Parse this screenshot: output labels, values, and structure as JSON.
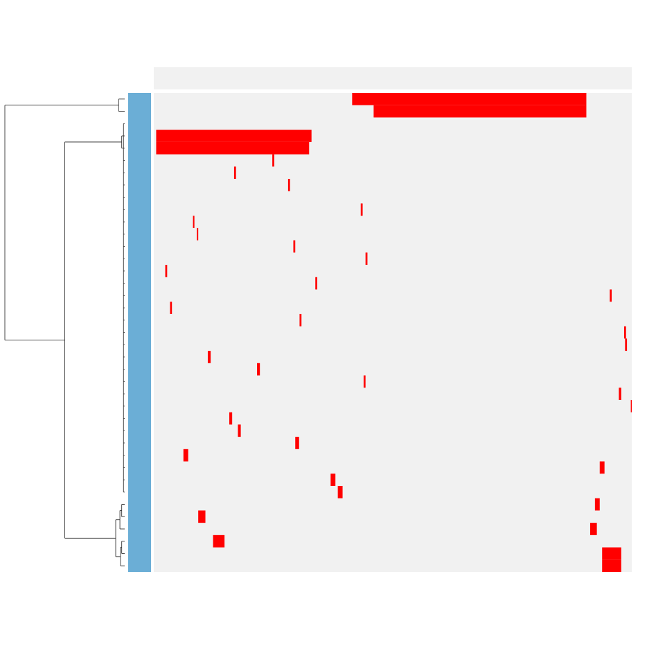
{
  "chart_data": {
    "type": "heatmap",
    "title": "",
    "xlabel": "",
    "ylabel": "",
    "grid": false,
    "legend": "none",
    "n_rows": 39,
    "x_range": [
      0,
      100
    ],
    "colors": {
      "background": "#f1f1f1",
      "mark": "#ff0000",
      "row_annotation": "#6baed6",
      "dendrogram": "#333333"
    },
    "marked_segments": [
      {
        "row": 0,
        "x_start": 41.5,
        "x_end": 90.5
      },
      {
        "row": 1,
        "x_start": 46.0,
        "x_end": 90.5
      },
      {
        "row": 3,
        "x_start": 0.5,
        "x_end": 33.0
      },
      {
        "row": 4,
        "x_start": 0.5,
        "x_end": 32.5
      },
      {
        "row": 5,
        "x_start": 24.8,
        "x_end": 25.2
      },
      {
        "row": 6,
        "x_start": 16.8,
        "x_end": 17.2
      },
      {
        "row": 7,
        "x_start": 28.1,
        "x_end": 28.5
      },
      {
        "row": 9,
        "x_start": 43.3,
        "x_end": 43.7
      },
      {
        "row": 10,
        "x_start": 8.2,
        "x_end": 8.5
      },
      {
        "row": 11,
        "x_start": 9.0,
        "x_end": 9.3
      },
      {
        "row": 12,
        "x_start": 29.2,
        "x_end": 29.6
      },
      {
        "row": 13,
        "x_start": 44.3,
        "x_end": 44.7
      },
      {
        "row": 14,
        "x_start": 2.4,
        "x_end": 2.8
      },
      {
        "row": 15,
        "x_start": 33.8,
        "x_end": 34.2
      },
      {
        "row": 16,
        "x_start": 95.4,
        "x_end": 95.8
      },
      {
        "row": 17,
        "x_start": 3.4,
        "x_end": 3.8
      },
      {
        "row": 18,
        "x_start": 30.5,
        "x_end": 30.9
      },
      {
        "row": 19,
        "x_start": 98.4,
        "x_end": 98.8
      },
      {
        "row": 20,
        "x_start": 98.6,
        "x_end": 99.0
      },
      {
        "row": 21,
        "x_start": 11.3,
        "x_end": 11.9
      },
      {
        "row": 22,
        "x_start": 21.6,
        "x_end": 22.2
      },
      {
        "row": 23,
        "x_start": 43.9,
        "x_end": 44.3
      },
      {
        "row": 24,
        "x_start": 97.3,
        "x_end": 97.8
      },
      {
        "row": 25,
        "x_start": 99.8,
        "x_end": 100.0
      },
      {
        "row": 26,
        "x_start": 15.8,
        "x_end": 16.4
      },
      {
        "row": 27,
        "x_start": 17.6,
        "x_end": 18.2
      },
      {
        "row": 28,
        "x_start": 29.6,
        "x_end": 30.4
      },
      {
        "row": 29,
        "x_start": 6.2,
        "x_end": 7.2
      },
      {
        "row": 30,
        "x_start": 93.3,
        "x_end": 94.3
      },
      {
        "row": 31,
        "x_start": 37.0,
        "x_end": 38.0
      },
      {
        "row": 32,
        "x_start": 38.5,
        "x_end": 39.5
      },
      {
        "row": 33,
        "x_start": 92.3,
        "x_end": 93.3
      },
      {
        "row": 34,
        "x_start": 9.3,
        "x_end": 10.8
      },
      {
        "row": 35,
        "x_start": 91.3,
        "x_end": 92.7
      },
      {
        "row": 36,
        "x_start": 12.4,
        "x_end": 14.8
      },
      {
        "row": 37,
        "x_start": 93.8,
        "x_end": 97.8
      },
      {
        "row": 38,
        "x_start": 93.8,
        "x_end": 97.8
      }
    ],
    "dendrogram": {
      "leaf_order": "top-to-bottom",
      "merges": [
        {
          "id": "A",
          "children": [
            "r0",
            "r1"
          ],
          "height": 0.1
        },
        {
          "id": "B",
          "children": [
            "r3",
            "r4"
          ],
          "height": 0.05
        },
        {
          "id": "C",
          "children": [
            "r33",
            "r34"
          ],
          "height": 0.05
        },
        {
          "id": "D",
          "children": [
            "r35",
            "C"
          ],
          "height": 0.08
        },
        {
          "id": "E",
          "children": [
            "r36",
            "r37"
          ],
          "height": 0.05
        },
        {
          "id": "F",
          "children": [
            "E",
            "r38"
          ],
          "height": 0.07
        },
        {
          "id": "G",
          "children": [
            "D",
            "F"
          ],
          "height": 0.15
        },
        {
          "id": "H",
          "children": [
            "B",
            "G"
          ],
          "height": 1.0
        },
        {
          "id": "root",
          "children": [
            "A",
            "H"
          ],
          "height": 2.0
        }
      ]
    }
  }
}
